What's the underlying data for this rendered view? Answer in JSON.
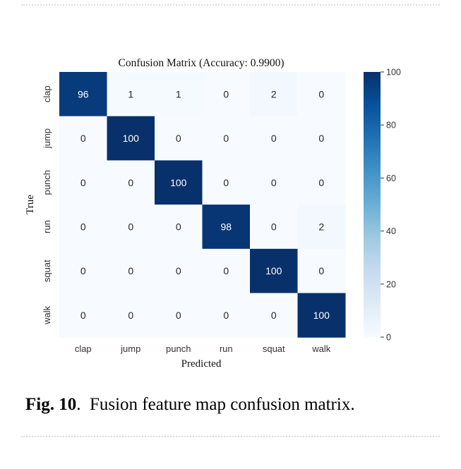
{
  "chart_data": {
    "type": "heatmap",
    "title": "Confusion Matrix (Accuracy: 0.9900)",
    "xlabel": "Predicted",
    "ylabel": "True",
    "x_categories": [
      "clap",
      "jump",
      "punch",
      "run",
      "squat",
      "walk"
    ],
    "y_categories": [
      "clap",
      "jump",
      "punch",
      "run",
      "squat",
      "walk"
    ],
    "values": [
      [
        96,
        1,
        1,
        0,
        2,
        0
      ],
      [
        0,
        100,
        0,
        0,
        0,
        0
      ],
      [
        0,
        0,
        100,
        0,
        0,
        0
      ],
      [
        0,
        0,
        0,
        98,
        0,
        2
      ],
      [
        0,
        0,
        0,
        0,
        100,
        0
      ],
      [
        0,
        0,
        0,
        0,
        0,
        100
      ]
    ],
    "colorbar": {
      "range": [
        0,
        100
      ],
      "ticks": [
        0,
        20,
        40,
        60,
        80,
        100
      ]
    },
    "colors": {
      "low": "#f7fbff",
      "high": "#08306b"
    }
  },
  "caption": {
    "label": "Fig. 10",
    "separator": ".",
    "text": "Fusion feature map confusion matrix."
  }
}
